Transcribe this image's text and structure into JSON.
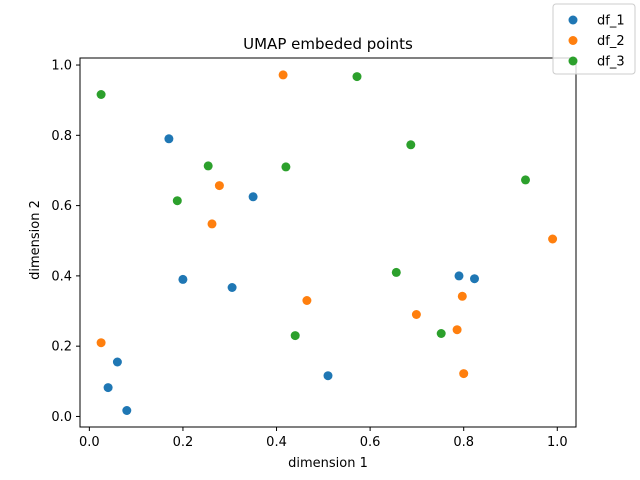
{
  "chart_data": {
    "type": "scatter",
    "title": "UMAP embeded points",
    "xlabel": "dimension 1",
    "ylabel": "dimension 2",
    "xlim": [
      -0.02,
      1.04
    ],
    "ylim": [
      -0.03,
      1.02
    ],
    "xticks": [
      0.0,
      0.2,
      0.4,
      0.6,
      0.8,
      1.0
    ],
    "yticks": [
      0.0,
      0.2,
      0.4,
      0.6,
      0.8,
      1.0
    ],
    "xtick_labels": [
      "0.0",
      "0.2",
      "0.4",
      "0.6",
      "0.8",
      "1.0"
    ],
    "ytick_labels": [
      "0.0",
      "0.2",
      "0.4",
      "0.6",
      "0.8",
      "1.0"
    ],
    "grid": false,
    "legend_position": "top-right, outside axes",
    "series": [
      {
        "name": "df_1",
        "color": "#1f77b4",
        "points": [
          [
            0.17,
            0.79
          ],
          [
            0.35,
            0.625
          ],
          [
            0.2,
            0.39
          ],
          [
            0.305,
            0.367
          ],
          [
            0.06,
            0.155
          ],
          [
            0.04,
            0.082
          ],
          [
            0.08,
            0.017
          ],
          [
            0.51,
            0.116
          ],
          [
            0.79,
            0.4
          ],
          [
            0.823,
            0.392
          ]
        ]
      },
      {
        "name": "df_2",
        "color": "#ff7f0e",
        "points": [
          [
            0.414,
            0.972
          ],
          [
            0.278,
            0.657
          ],
          [
            0.262,
            0.548
          ],
          [
            0.99,
            0.505
          ],
          [
            0.025,
            0.21
          ],
          [
            0.465,
            0.33
          ],
          [
            0.797,
            0.342
          ],
          [
            0.699,
            0.29
          ],
          [
            0.786,
            0.247
          ],
          [
            0.8,
            0.122
          ]
        ]
      },
      {
        "name": "df_3",
        "color": "#2ca02c",
        "points": [
          [
            0.025,
            0.916
          ],
          [
            0.572,
            0.967
          ],
          [
            0.254,
            0.713
          ],
          [
            0.42,
            0.71
          ],
          [
            0.687,
            0.773
          ],
          [
            0.188,
            0.614
          ],
          [
            0.932,
            0.673
          ],
          [
            0.656,
            0.41
          ],
          [
            0.44,
            0.23
          ],
          [
            0.752,
            0.236
          ]
        ]
      }
    ]
  }
}
